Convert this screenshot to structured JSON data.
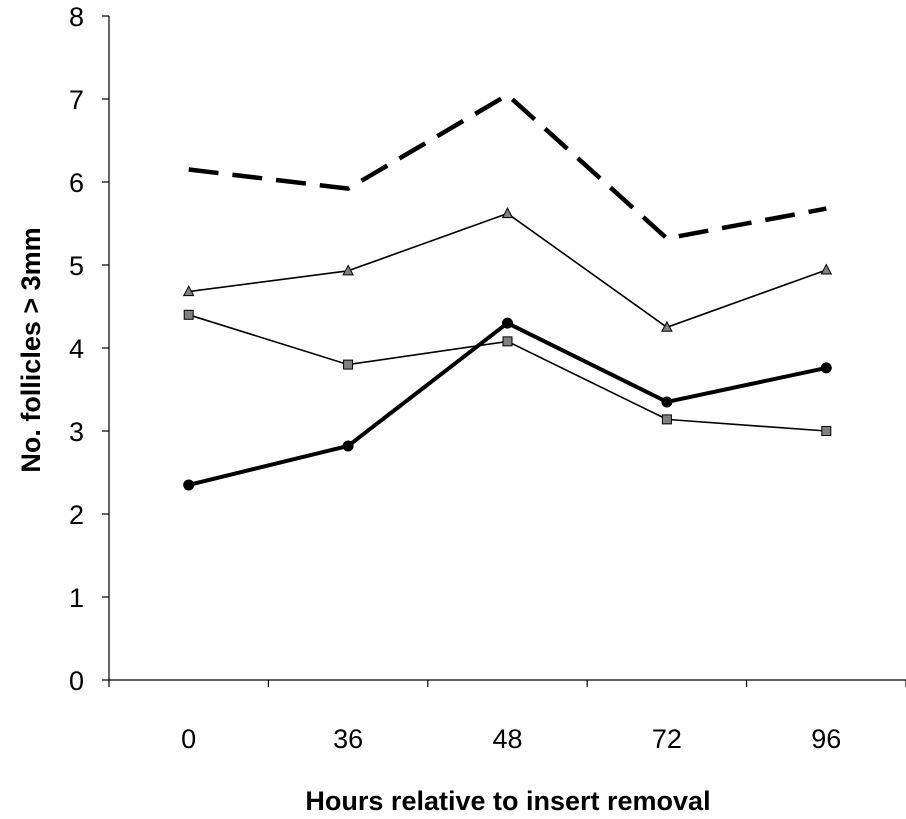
{
  "chart_data": {
    "type": "line",
    "title": "",
    "xlabel": "Hours relative to insert removal",
    "ylabel": "No. follicles > 3mm",
    "categories": [
      "0",
      "36",
      "48",
      "72",
      "96"
    ],
    "ylim": [
      0,
      8
    ],
    "yticks": [
      0,
      1,
      2,
      3,
      4,
      5,
      6,
      7,
      8
    ],
    "grid": false,
    "legend": "none",
    "series": [
      {
        "style": "dashed-thick",
        "color": "#000000",
        "marker": "none",
        "values": [
          6.15,
          5.92,
          7.05,
          5.32,
          5.68
        ]
      },
      {
        "style": "thin",
        "color": "#000000",
        "marker": "triangle",
        "marker_color": "#808080",
        "values": [
          4.68,
          4.93,
          5.62,
          4.25,
          4.94
        ]
      },
      {
        "style": "thin",
        "color": "#000000",
        "marker": "square",
        "marker_color": "#808080",
        "values": [
          4.4,
          3.8,
          4.08,
          3.14,
          3.0
        ]
      },
      {
        "style": "thick",
        "color": "#000000",
        "marker": "circle",
        "marker_color": "#000000",
        "values": [
          2.35,
          2.82,
          4.3,
          3.35,
          3.76
        ]
      }
    ]
  }
}
